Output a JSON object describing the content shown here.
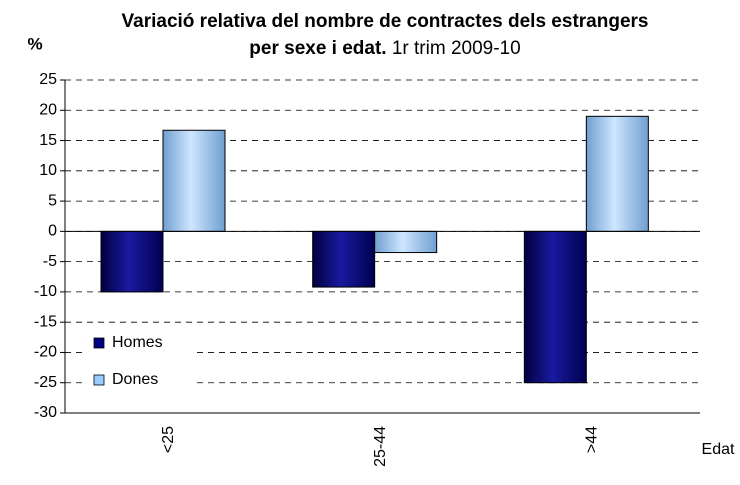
{
  "chart_data": {
    "type": "bar",
    "title": "Variació relativa del nombre de contractes dels estrangers per sexe i edat.",
    "subtitle": "1r trim 2009-10",
    "y_label": "%",
    "x_label": "Edat",
    "categories": [
      "<25",
      "25-44",
      ">44"
    ],
    "series": [
      {
        "name": "Homes",
        "color": "#000080",
        "values": [
          -10,
          -9.2,
          -25
        ]
      },
      {
        "name": "Dones",
        "color": "#99ccff",
        "values": [
          16.7,
          -3.5,
          19
        ]
      }
    ],
    "ylim": [
      -30,
      25
    ],
    "yticks": [
      -30,
      -25,
      -20,
      -15,
      -10,
      -5,
      0,
      5,
      10,
      15,
      20,
      25
    ],
    "grid": true,
    "legend": "lower left"
  }
}
